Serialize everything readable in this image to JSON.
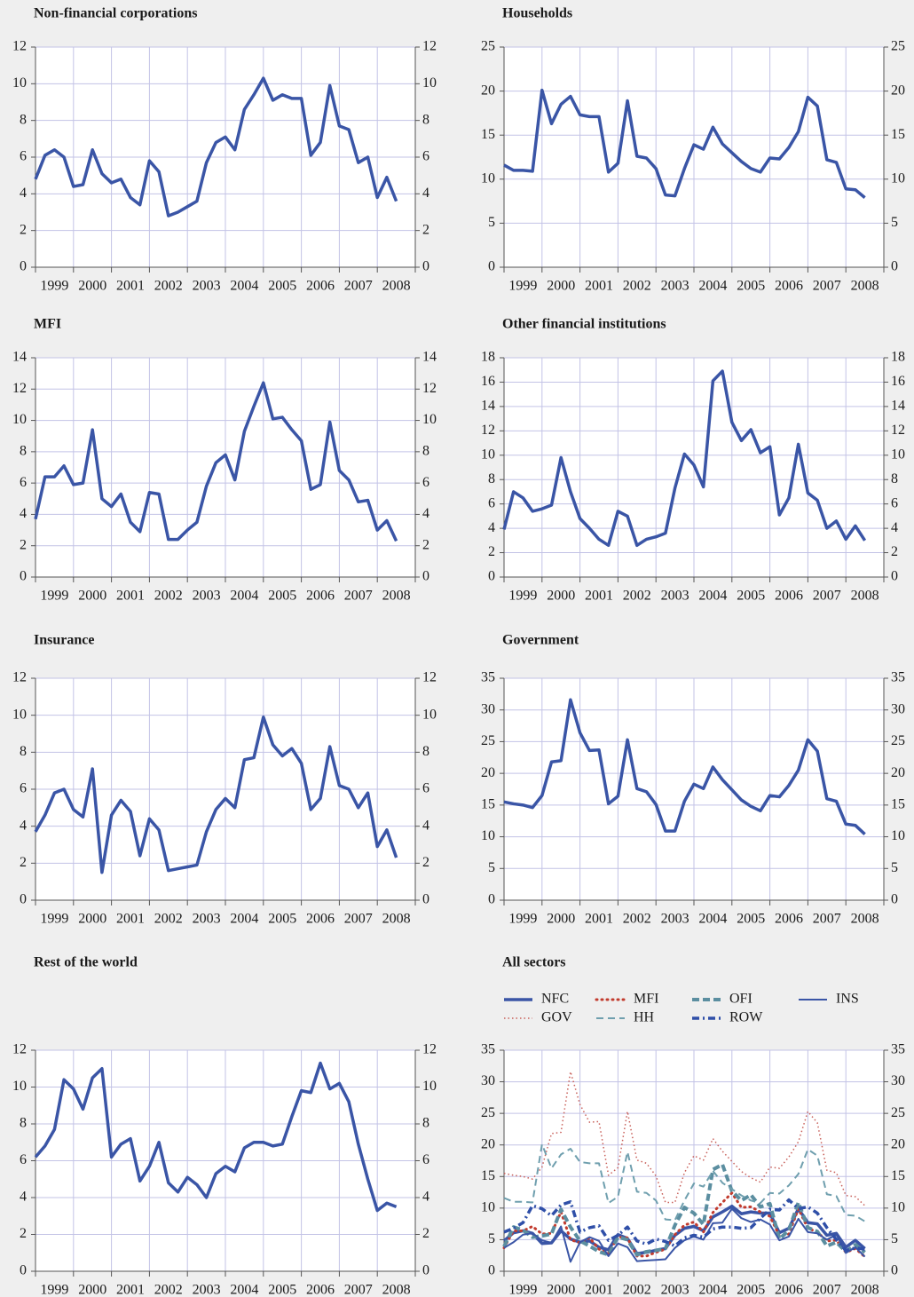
{
  "chart_data": [
    {
      "type": "line",
      "title": "Non-financial corporations",
      "color": "#3a55a6",
      "grid": true,
      "ylim": [
        0,
        12
      ],
      "yticks": [
        0,
        2,
        4,
        6,
        8,
        10,
        12
      ],
      "categories": [
        "1999",
        null,
        null,
        null,
        "2000",
        null,
        null,
        null,
        "2001",
        null,
        null,
        null,
        "2002",
        null,
        null,
        null,
        "2003",
        null,
        null,
        null,
        "2004",
        null,
        null,
        null,
        "2005",
        null,
        null,
        null,
        "2006",
        null,
        null,
        null,
        "2007",
        null,
        null,
        null,
        "2008",
        null,
        null
      ],
      "values": [
        4.8,
        6.1,
        6.4,
        6.0,
        4.4,
        4.5,
        6.4,
        5.1,
        4.6,
        4.8,
        3.8,
        3.4,
        5.8,
        5.2,
        2.8,
        3.0,
        3.3,
        3.6,
        5.7,
        6.8,
        7.1,
        6.4,
        8.6,
        9.4,
        10.3,
        9.1,
        9.4,
        9.2,
        9.2,
        6.1,
        6.8,
        9.9,
        7.7,
        7.5,
        5.7,
        6.0,
        3.8,
        4.9,
        3.6
      ]
    },
    {
      "type": "line",
      "title": "Households",
      "color": "#3a55a6",
      "grid": true,
      "ylim": [
        0,
        25
      ],
      "yticks": [
        0,
        5,
        10,
        15,
        20,
        25
      ],
      "categories": [
        "1999",
        null,
        null,
        null,
        "2000",
        null,
        null,
        null,
        "2001",
        null,
        null,
        null,
        "2002",
        null,
        null,
        null,
        "2003",
        null,
        null,
        null,
        "2004",
        null,
        null,
        null,
        "2005",
        null,
        null,
        null,
        "2006",
        null,
        null,
        null,
        "2007",
        null,
        null,
        null,
        "2008",
        null,
        null
      ],
      "values": [
        11.6,
        11.0,
        11.0,
        10.9,
        20.1,
        16.3,
        18.5,
        19.4,
        17.3,
        17.1,
        17.1,
        10.8,
        11.8,
        18.9,
        12.6,
        12.4,
        11.2,
        8.2,
        8.1,
        11.2,
        13.9,
        13.4,
        15.9,
        14.0,
        13.0,
        12.0,
        11.2,
        10.8,
        12.4,
        12.3,
        13.6,
        15.4,
        19.3,
        18.3,
        12.2,
        11.9,
        8.9,
        8.8,
        7.9
      ]
    },
    {
      "type": "line",
      "title": "MFI",
      "color": "#3a55a6",
      "grid": true,
      "ylim": [
        0,
        14
      ],
      "yticks": [
        0,
        2,
        4,
        6,
        8,
        10,
        12,
        14
      ],
      "categories": [
        "1999",
        null,
        null,
        null,
        "2000",
        null,
        null,
        null,
        "2001",
        null,
        null,
        null,
        "2002",
        null,
        null,
        null,
        "2003",
        null,
        null,
        null,
        "2004",
        null,
        null,
        null,
        "2005",
        null,
        null,
        null,
        "2006",
        null,
        null,
        null,
        "2007",
        null,
        null,
        null,
        "2008",
        null,
        null
      ],
      "values": [
        3.7,
        6.4,
        6.4,
        7.1,
        5.9,
        6.0,
        9.4,
        5.0,
        4.5,
        5.3,
        3.5,
        2.9,
        5.4,
        5.3,
        2.4,
        2.4,
        3.0,
        3.5,
        5.8,
        7.3,
        7.8,
        6.2,
        9.3,
        10.9,
        12.4,
        10.1,
        10.2,
        9.4,
        8.7,
        5.6,
        5.9,
        9.9,
        6.8,
        6.2,
        4.8,
        4.9,
        3.0,
        3.6,
        2.3
      ]
    },
    {
      "type": "line",
      "title": "Other financial institutions",
      "color": "#3a55a6",
      "grid": true,
      "ylim": [
        0,
        18
      ],
      "yticks": [
        0,
        2,
        4,
        6,
        8,
        10,
        12,
        14,
        16,
        18
      ],
      "categories": [
        "1999",
        null,
        null,
        null,
        "2000",
        null,
        null,
        null,
        "2001",
        null,
        null,
        null,
        "2002",
        null,
        null,
        null,
        "2003",
        null,
        null,
        null,
        "2004",
        null,
        null,
        null,
        "2005",
        null,
        null,
        null,
        "2006",
        null,
        null,
        null,
        "2007",
        null,
        null,
        null,
        "2008",
        null,
        null
      ],
      "values": [
        3.9,
        7.0,
        6.5,
        5.4,
        5.6,
        5.9,
        9.8,
        7.0,
        4.8,
        4.0,
        3.1,
        2.6,
        5.4,
        5.0,
        2.6,
        3.1,
        3.3,
        3.6,
        7.3,
        10.1,
        9.2,
        7.4,
        16.1,
        16.9,
        12.7,
        11.2,
        12.1,
        10.2,
        10.7,
        5.1,
        6.5,
        10.9,
        6.9,
        6.3,
        4.0,
        4.6,
        3.1,
        4.2,
        3.0
      ]
    },
    {
      "type": "line",
      "title": "Insurance",
      "color": "#3a55a6",
      "grid": true,
      "ylim": [
        0,
        12
      ],
      "yticks": [
        0,
        2,
        4,
        6,
        8,
        10,
        12
      ],
      "categories": [
        "1999",
        null,
        null,
        null,
        "2000",
        null,
        null,
        null,
        "2001",
        null,
        null,
        null,
        "2002",
        null,
        null,
        null,
        "2003",
        null,
        null,
        null,
        "2004",
        null,
        null,
        null,
        "2005",
        null,
        null,
        null,
        "2006",
        null,
        null,
        null,
        "2007",
        null,
        null,
        null,
        "2008",
        null,
        null
      ],
      "values": [
        3.7,
        4.6,
        5.8,
        6.0,
        4.9,
        4.5,
        7.1,
        1.5,
        4.6,
        5.4,
        4.8,
        2.4,
        4.4,
        3.8,
        1.6,
        1.7,
        1.8,
        1.9,
        3.7,
        4.9,
        5.5,
        5.0,
        7.6,
        7.7,
        9.9,
        8.4,
        7.8,
        8.2,
        7.4,
        4.9,
        5.5,
        8.3,
        6.2,
        6.0,
        5.0,
        5.8,
        2.9,
        3.8,
        2.3
      ]
    },
    {
      "type": "line",
      "title": "Government",
      "color": "#3a55a6",
      "grid": true,
      "ylim": [
        0,
        35
      ],
      "yticks": [
        0,
        5,
        10,
        15,
        20,
        25,
        30,
        35
      ],
      "categories": [
        "1999",
        null,
        null,
        null,
        "2000",
        null,
        null,
        null,
        "2001",
        null,
        null,
        null,
        "2002",
        null,
        null,
        null,
        "2003",
        null,
        null,
        null,
        "2004",
        null,
        null,
        null,
        "2005",
        null,
        null,
        null,
        "2006",
        null,
        null,
        null,
        "2007",
        null,
        null,
        null,
        "2008",
        null,
        null
      ],
      "values": [
        15.5,
        15.2,
        15.0,
        14.6,
        16.5,
        21.8,
        22.0,
        31.6,
        26.4,
        23.6,
        23.7,
        15.2,
        16.4,
        25.3,
        17.6,
        17.1,
        15.1,
        10.9,
        10.9,
        15.6,
        18.3,
        17.6,
        21.0,
        19.0,
        17.4,
        15.8,
        14.8,
        14.1,
        16.5,
        16.3,
        18.1,
        20.5,
        25.3,
        23.5,
        16.0,
        15.6,
        12.0,
        11.8,
        10.4
      ]
    },
    {
      "type": "line",
      "title": "Rest of the world",
      "color": "#3a55a6",
      "grid": true,
      "ylim": [
        0,
        12
      ],
      "yticks": [
        0,
        2,
        4,
        6,
        8,
        10,
        12
      ],
      "categories": [
        "1999",
        null,
        null,
        null,
        "2000",
        null,
        null,
        null,
        "2001",
        null,
        null,
        null,
        "2002",
        null,
        null,
        null,
        "2003",
        null,
        null,
        null,
        "2004",
        null,
        null,
        null,
        "2005",
        null,
        null,
        null,
        "2006",
        null,
        null,
        null,
        "2007",
        null,
        null,
        null,
        "2008",
        null,
        null
      ],
      "values": [
        6.2,
        6.8,
        7.7,
        10.4,
        9.9,
        8.8,
        10.5,
        11.0,
        6.2,
        6.9,
        7.2,
        4.9,
        5.7,
        7.0,
        4.8,
        4.3,
        5.1,
        4.7,
        4.0,
        5.3,
        5.7,
        5.4,
        6.7,
        7.0,
        7.0,
        6.8,
        6.9,
        8.4,
        9.8,
        9.7,
        11.3,
        9.9,
        10.2,
        9.2,
        6.9,
        5.0,
        3.3,
        3.7,
        3.5
      ]
    },
    {
      "type": "line",
      "title": "All sectors",
      "grid": true,
      "legend": "top",
      "ylim": [
        0,
        35
      ],
      "yticks": [
        0,
        5,
        10,
        15,
        20,
        25,
        30,
        35
      ],
      "categories": [
        "1999",
        null,
        null,
        null,
        "2000",
        null,
        null,
        null,
        "2001",
        null,
        null,
        null,
        "2002",
        null,
        null,
        null,
        "2003",
        null,
        null,
        null,
        "2004",
        null,
        null,
        null,
        "2005",
        null,
        null,
        null,
        "2006",
        null,
        null,
        null,
        "2007",
        null,
        null,
        null,
        "2008",
        null,
        null
      ],
      "series": [
        {
          "name": "NFC",
          "color": "#3a55a6",
          "linestyle": "solid",
          "values": [
            4.8,
            6.1,
            6.4,
            6.0,
            4.4,
            4.5,
            6.4,
            5.1,
            4.6,
            4.8,
            3.8,
            3.4,
            5.8,
            5.2,
            2.8,
            3.0,
            3.3,
            3.6,
            5.7,
            6.8,
            7.1,
            6.4,
            8.6,
            9.4,
            10.3,
            9.1,
            9.4,
            9.2,
            9.2,
            6.1,
            6.8,
            9.9,
            7.7,
            7.5,
            5.7,
            6.0,
            3.8,
            4.9,
            3.6
          ]
        },
        {
          "name": "MFI",
          "color": "#c23b2e",
          "linestyle": "dotted",
          "values": [
            3.7,
            6.4,
            6.4,
            7.1,
            5.9,
            6.0,
            9.4,
            5.0,
            4.5,
            5.3,
            3.5,
            2.9,
            5.4,
            5.3,
            2.4,
            2.4,
            3.0,
            3.5,
            5.8,
            7.3,
            7.8,
            6.2,
            9.3,
            10.9,
            12.4,
            10.1,
            10.2,
            9.4,
            8.7,
            5.6,
            5.9,
            9.9,
            6.8,
            6.2,
            4.8,
            4.9,
            3.0,
            3.6,
            2.3
          ]
        },
        {
          "name": "OFI",
          "color": "#5b8ea0",
          "linestyle": "dashed",
          "values": [
            3.9,
            7.0,
            6.5,
            5.4,
            5.6,
            5.9,
            9.8,
            7.0,
            4.8,
            4.0,
            3.1,
            2.6,
            5.4,
            5.0,
            2.6,
            3.1,
            3.3,
            3.6,
            7.3,
            10.1,
            9.2,
            7.4,
            16.1,
            16.9,
            12.7,
            11.2,
            12.1,
            10.2,
            10.7,
            5.1,
            6.5,
            10.9,
            6.9,
            6.3,
            4.0,
            4.6,
            3.1,
            4.2,
            3.0
          ]
        },
        {
          "name": "INS",
          "color": "#3a55a6",
          "linestyle": "solid-thin",
          "values": [
            3.7,
            4.6,
            5.8,
            6.0,
            4.9,
            4.5,
            7.1,
            1.5,
            4.6,
            5.4,
            4.8,
            2.4,
            4.4,
            3.8,
            1.6,
            1.7,
            1.8,
            1.9,
            3.7,
            4.9,
            5.5,
            5.0,
            7.6,
            7.7,
            9.9,
            8.4,
            7.8,
            8.2,
            7.4,
            4.9,
            5.5,
            8.3,
            6.2,
            6.0,
            5.0,
            5.8,
            2.9,
            3.8,
            2.3
          ]
        },
        {
          "name": "GOV",
          "color": "#c8605a",
          "linestyle": "dotted-thin",
          "values": [
            15.5,
            15.2,
            15.0,
            14.6,
            16.5,
            21.8,
            22.0,
            31.6,
            26.4,
            23.6,
            23.7,
            15.2,
            16.4,
            25.3,
            17.6,
            17.1,
            15.1,
            10.9,
            10.9,
            15.6,
            18.3,
            17.6,
            21.0,
            19.0,
            17.4,
            15.8,
            14.8,
            14.1,
            16.5,
            16.3,
            18.1,
            20.5,
            25.3,
            23.5,
            16.0,
            15.6,
            12.0,
            11.8,
            10.4
          ]
        },
        {
          "name": "HH",
          "color": "#6f9fae",
          "linestyle": "dashed-thin",
          "values": [
            11.6,
            11.0,
            11.0,
            10.9,
            20.1,
            16.3,
            18.5,
            19.4,
            17.3,
            17.1,
            17.1,
            10.8,
            11.8,
            18.9,
            12.6,
            12.4,
            11.2,
            8.2,
            8.1,
            11.2,
            13.9,
            13.4,
            15.9,
            14.0,
            13.0,
            12.0,
            11.2,
            10.8,
            12.4,
            12.3,
            13.6,
            15.4,
            19.3,
            18.3,
            12.2,
            11.9,
            8.9,
            8.8,
            7.9
          ]
        },
        {
          "name": "ROW",
          "color": "#2f4fa8",
          "linestyle": "dashdot",
          "values": [
            6.2,
            6.8,
            7.7,
            10.4,
            9.9,
            8.8,
            10.5,
            11.0,
            6.2,
            6.9,
            7.2,
            4.9,
            5.7,
            7.0,
            4.8,
            4.3,
            5.1,
            4.7,
            4.0,
            5.3,
            5.7,
            5.4,
            6.7,
            7.0,
            7.0,
            6.8,
            6.9,
            8.4,
            9.8,
            9.7,
            11.3,
            9.9,
            10.2,
            9.2,
            6.9,
            5.0,
            3.3,
            3.7,
            3.5
          ]
        }
      ]
    }
  ]
}
